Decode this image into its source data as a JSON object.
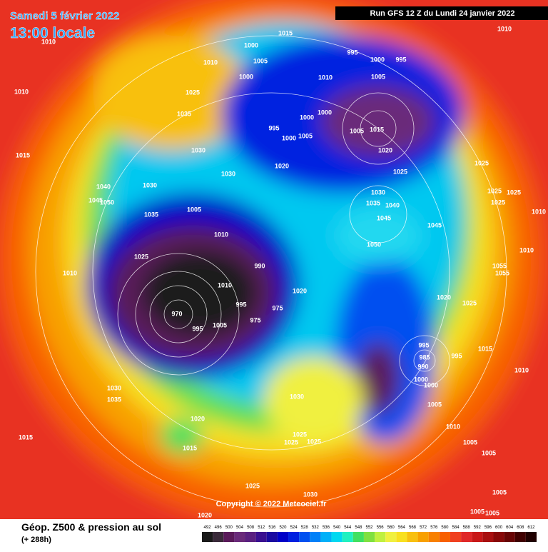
{
  "header": {
    "date": "Samedi 5 février 2022",
    "time": "13:00 locale",
    "run": "Run GFS 12 Z du Lundi 24 janvier 2022"
  },
  "copyright": "Copyright © 2022 Meteociel.fr",
  "footer": {
    "title": "Géop. Z500 & pression au sol",
    "lead": "(+ 288h)"
  },
  "scale": {
    "values": [
      492,
      496,
      500,
      504,
      508,
      512,
      516,
      520,
      524,
      528,
      532,
      536,
      540,
      544,
      548,
      552,
      556,
      560,
      564,
      568,
      572,
      576,
      580,
      584,
      588,
      592,
      596,
      600,
      604,
      608,
      612
    ],
    "colors": [
      "#1a1a1a",
      "#3a2a3a",
      "#5a1a5a",
      "#6a2a7a",
      "#5a2080",
      "#3a1090",
      "#1a0aa0",
      "#0000c8",
      "#0020e0",
      "#0050f0",
      "#0080f8",
      "#00b0f8",
      "#00d8f0",
      "#20f0c0",
      "#40e060",
      "#80e040",
      "#c0f040",
      "#f0f040",
      "#f8e020",
      "#f8c010",
      "#f8a000",
      "#f88000",
      "#f86000",
      "#f04020",
      "#e02828",
      "#c81818",
      "#a81010",
      "#880808",
      "#680404",
      "#400000",
      "#200000"
    ]
  },
  "pressure_labels": [
    "1015",
    "1010",
    "1010",
    "1000",
    "995",
    "1000",
    "995",
    "1005",
    "1010",
    "1000",
    "1010",
    "1005",
    "1010",
    "1025",
    "1035",
    "1000",
    "1000",
    "1005",
    "1015",
    "995",
    "1005",
    "1000",
    "1020",
    "1030",
    "1015",
    "1020",
    "1030",
    "1025",
    "1025",
    "1030",
    "1040",
    "1030",
    "1025",
    "1025",
    "1045",
    "1050",
    "1035",
    "1040",
    "1025",
    "1005",
    "1035",
    "1010",
    "1045",
    "1045",
    "1010",
    "1050",
    "1010",
    "1025",
    "990",
    "1055",
    "1055",
    "1010",
    "1010",
    "1020",
    "1020",
    "1025",
    "970",
    "995",
    "975",
    "1005",
    "975",
    "995",
    "1015",
    "995",
    "985",
    "995",
    "990",
    "1010",
    "1000",
    "1000",
    "1030",
    "1030",
    "1035",
    "1005",
    "1020",
    "1010",
    "1015",
    "1025",
    "1025",
    "1025",
    "1015",
    "1005",
    "1005",
    "1025",
    "1005",
    "1030",
    "1005",
    "1005",
    "1020"
  ]
}
